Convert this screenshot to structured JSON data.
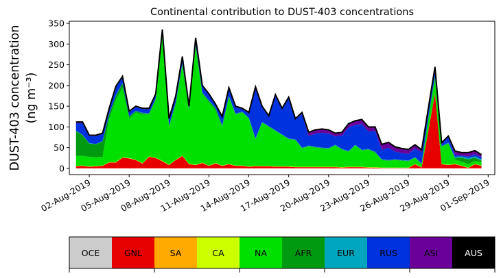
{
  "chart_data": {
    "type": "area",
    "stacked": true,
    "title": "Continental contribution to DUST-403 concentrations",
    "ylabel_line1": "DUST-403 concentration",
    "ylabel_line2": "(ng m⁻³)",
    "xlabel": "",
    "ylim": [
      -15,
      355
    ],
    "yticks": [
      0,
      50,
      100,
      150,
      200,
      250,
      300,
      350
    ],
    "xlim": [
      "2019-07-31 12:00",
      "2019-09-01 12:00"
    ],
    "xticks": [
      "2019-08-02",
      "2019-08-05",
      "2019-08-08",
      "2019-08-11",
      "2019-08-14",
      "2019-08-17",
      "2019-08-20",
      "2019-08-23",
      "2019-08-26",
      "2019-08-29",
      "2019-09-01"
    ],
    "xtick_labels": [
      "02-Aug-2019",
      "05-Aug-2019",
      "08-Aug-2019",
      "11-Aug-2019",
      "14-Aug-2019",
      "17-Aug-2019",
      "20-Aug-2019",
      "23-Aug-2019",
      "26-Aug-2019",
      "29-Aug-2019",
      "01-Sep-2019"
    ],
    "grid": false,
    "legend_placement": "bottom colorbar",
    "x": [
      "2019-08-01 00:00",
      "2019-08-01 12:00",
      "2019-08-02 00:00",
      "2019-08-02 12:00",
      "2019-08-03 00:00",
      "2019-08-03 12:00",
      "2019-08-04 00:00",
      "2019-08-04 12:00",
      "2019-08-05 00:00",
      "2019-08-05 12:00",
      "2019-08-06 00:00",
      "2019-08-06 12:00",
      "2019-08-07 00:00",
      "2019-08-07 12:00",
      "2019-08-08 00:00",
      "2019-08-08 12:00",
      "2019-08-09 00:00",
      "2019-08-09 12:00",
      "2019-08-10 00:00",
      "2019-08-10 12:00",
      "2019-08-11 00:00",
      "2019-08-11 12:00",
      "2019-08-12 00:00",
      "2019-08-12 12:00",
      "2019-08-13 00:00",
      "2019-08-13 12:00",
      "2019-08-14 00:00",
      "2019-08-14 12:00",
      "2019-08-15 00:00",
      "2019-08-15 12:00",
      "2019-08-16 00:00",
      "2019-08-16 12:00",
      "2019-08-17 00:00",
      "2019-08-17 12:00",
      "2019-08-18 00:00",
      "2019-08-18 12:00",
      "2019-08-19 00:00",
      "2019-08-19 12:00",
      "2019-08-20 00:00",
      "2019-08-20 12:00",
      "2019-08-21 00:00",
      "2019-08-21 12:00",
      "2019-08-22 00:00",
      "2019-08-22 12:00",
      "2019-08-23 00:00",
      "2019-08-23 12:00",
      "2019-08-24 00:00",
      "2019-08-24 12:00",
      "2019-08-25 00:00",
      "2019-08-25 12:00",
      "2019-08-26 00:00",
      "2019-08-26 12:00",
      "2019-08-27 00:00",
      "2019-08-27 12:00",
      "2019-08-28 00:00",
      "2019-08-28 12:00",
      "2019-08-29 00:00",
      "2019-08-29 12:00",
      "2019-08-30 00:00",
      "2019-08-30 12:00",
      "2019-08-31 00:00",
      "2019-08-31 12:00"
    ],
    "series": [
      {
        "name": "OCE",
        "color": "#cccccc",
        "values": [
          0,
          0,
          0,
          0,
          0,
          0,
          0,
          0,
          0,
          0,
          0,
          0,
          0,
          0,
          0,
          0,
          0,
          0,
          0,
          0,
          0,
          0,
          0,
          0,
          0,
          0,
          0,
          0,
          0,
          0,
          0,
          0,
          0,
          0,
          0,
          0,
          0,
          0,
          0,
          0,
          0,
          0,
          0,
          0,
          0,
          0,
          0,
          0,
          0,
          0,
          0,
          0,
          0,
          0,
          0,
          0,
          0,
          0,
          0,
          0,
          0,
          0
        ]
      },
      {
        "name": "GNL",
        "color": "#e60000",
        "values": [
          5,
          6,
          4,
          5,
          6,
          14,
          14,
          26,
          24,
          20,
          12,
          28,
          25,
          17,
          8,
          20,
          30,
          10,
          8,
          13,
          6,
          12,
          6,
          10,
          6,
          6,
          4,
          5,
          5,
          5,
          4,
          4,
          4,
          3,
          3,
          3,
          3,
          3,
          3,
          3,
          2,
          3,
          3,
          3,
          2,
          2,
          1,
          1,
          1,
          1,
          1,
          10,
          2,
          90,
          180,
          10,
          8,
          10,
          6,
          1,
          10,
          6
        ]
      },
      {
        "name": "SA",
        "color": "#ffaa00",
        "values": [
          0,
          0,
          0,
          0,
          0,
          0,
          0,
          0,
          0,
          0,
          0,
          0,
          0,
          0,
          0,
          0,
          0,
          0,
          0,
          0,
          0,
          0,
          0,
          0,
          0,
          0,
          0,
          0,
          0,
          0,
          0,
          0,
          0,
          0,
          0,
          0,
          0,
          0,
          0,
          0,
          0,
          0,
          0,
          0,
          0,
          0,
          0,
          0,
          0,
          0,
          0,
          0,
          0,
          0,
          0,
          0,
          0,
          0,
          0,
          0,
          0,
          0
        ]
      },
      {
        "name": "CA",
        "color": "#ccff00",
        "values": [
          1,
          1,
          1,
          1,
          1,
          1,
          1,
          1,
          1,
          1,
          1,
          1,
          1,
          1,
          1,
          1,
          1,
          1,
          1,
          1,
          1,
          1,
          1,
          1,
          1,
          1,
          1,
          1,
          1,
          1,
          1,
          1,
          1,
          1,
          1,
          1,
          1,
          1,
          1,
          1,
          1,
          1,
          1,
          1,
          1,
          1,
          1,
          1,
          1,
          1,
          1,
          1,
          1,
          1,
          1,
          1,
          1,
          1,
          1,
          1,
          1,
          1
        ]
      },
      {
        "name": "NA",
        "color": "#00e000",
        "values": [
          24,
          23,
          23,
          21,
          21,
          105,
          150,
          168,
          95,
          114,
          117,
          101,
          139,
          302,
          91,
          134,
          219,
          129,
          286,
          166,
          153,
          127,
          93,
          161,
          123,
          128,
          115,
          64,
          104,
          94,
          85,
          75,
          65,
          64,
          44,
          49,
          46,
          44,
          43,
          51,
          42,
          36,
          51,
          39,
          42,
          35,
          18,
          16,
          18,
          16,
          15,
          14,
          7,
          29,
          39,
          41,
          51,
          11,
          9,
          8,
          7,
          8
        ]
      },
      {
        "name": "AFR",
        "color": "#009a10",
        "values": [
          60,
          50,
          32,
          31,
          37,
          10,
          10,
          10,
          5,
          3,
          3,
          2,
          3,
          2,
          2,
          3,
          2,
          2,
          2,
          2,
          3,
          5,
          3,
          1,
          1,
          1,
          1,
          1,
          1,
          1,
          1,
          1,
          1,
          1,
          1,
          1,
          1,
          1,
          1,
          1,
          1,
          1,
          1,
          1,
          1,
          1,
          1,
          1,
          1,
          1,
          1,
          1,
          1,
          1,
          1,
          1,
          1,
          3,
          10,
          12,
          8,
          4
        ]
      },
      {
        "name": "EUR",
        "color": "#00a6bd",
        "values": [
          1,
          1,
          1,
          1,
          1,
          1,
          1,
          1,
          1,
          1,
          1,
          1,
          1,
          1,
          1,
          1,
          1,
          1,
          1,
          1,
          1,
          1,
          1,
          1,
          1,
          1,
          1,
          1,
          1,
          1,
          1,
          1,
          1,
          1,
          1,
          1,
          1,
          1,
          1,
          1,
          1,
          1,
          1,
          1,
          1,
          1,
          1,
          1,
          1,
          1,
          1,
          1,
          1,
          1,
          1,
          1,
          1,
          3,
          3,
          3,
          3,
          3
        ]
      },
      {
        "name": "RUS",
        "color": "#0033dd",
        "values": [
          18,
          28,
          17,
          19,
          17,
          12,
          20,
          14,
          10,
          9,
          9,
          10,
          9,
          10,
          15,
          14,
          15,
          5,
          15,
          15,
          14,
          7,
          19,
          19,
          16,
          6,
          11,
          123,
          36,
          23,
          84,
          61,
          98,
          48,
          81,
          23,
          32,
          36,
          35,
          20,
          32,
          57,
          48,
          62,
          42,
          51,
          23,
          30,
          19,
          17,
          16,
          21,
          27,
          20,
          20,
          5,
          13,
          5,
          2,
          4,
          5,
          5
        ]
      },
      {
        "name": "ASI",
        "color": "#6a0099",
        "values": [
          2,
          2,
          1,
          1,
          1,
          1,
          1,
          1,
          1,
          1,
          1,
          1,
          1,
          1,
          1,
          1,
          1,
          1,
          1,
          1,
          1,
          1,
          1,
          1,
          1,
          1,
          1,
          1,
          1,
          1,
          1,
          1,
          1,
          1,
          3,
          8,
          8,
          8,
          8,
          7,
          7,
          8,
          9,
          10,
          10,
          8,
          12,
          12,
          10,
          10,
          10,
          8,
          5,
          2,
          2,
          2,
          2,
          8,
          6,
          8,
          8,
          5
        ]
      },
      {
        "name": "AUS",
        "color": "#000000",
        "values": [
          1,
          1,
          1,
          1,
          1,
          1,
          1,
          1,
          1,
          1,
          1,
          1,
          1,
          1,
          1,
          1,
          1,
          1,
          1,
          1,
          1,
          1,
          1,
          1,
          1,
          1,
          1,
          1,
          1,
          1,
          1,
          1,
          1,
          1,
          1,
          1,
          1,
          1,
          1,
          1,
          1,
          1,
          1,
          1,
          1,
          1,
          1,
          1,
          1,
          1,
          1,
          1,
          1,
          1,
          1,
          1,
          1,
          1,
          1,
          1,
          1,
          1
        ]
      }
    ]
  }
}
